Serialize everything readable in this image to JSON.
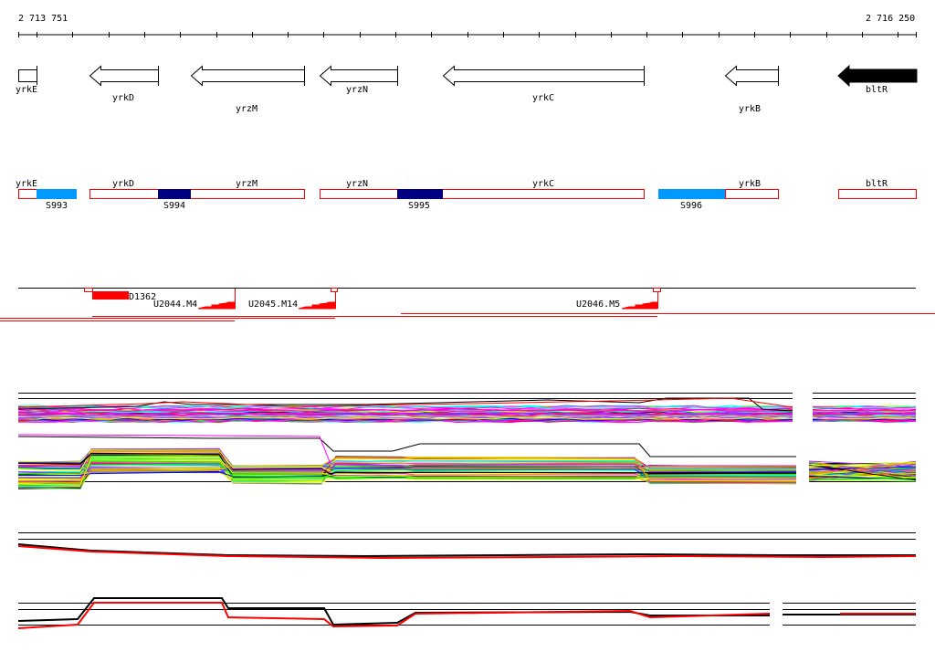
{
  "scale": {
    "start_label": "2 713 751",
    "end_label": "2 716 250"
  },
  "genes": [
    {
      "name": "yrkE",
      "strand": "box"
    },
    {
      "name": "yrkD",
      "strand": "-"
    },
    {
      "name": "yrzM",
      "strand": "-"
    },
    {
      "name": "yrzN",
      "strand": "-"
    },
    {
      "name": "yrkC",
      "strand": "-"
    },
    {
      "name": "yrkB",
      "strand": "-"
    },
    {
      "name": "bltR",
      "strand": "-",
      "highlighted": true
    }
  ],
  "segments": [
    {
      "name": "S993",
      "color": "#0099ff"
    },
    {
      "name": "S994",
      "color": "#000080"
    },
    {
      "name": "S995",
      "color": "#000080"
    },
    {
      "name": "S996",
      "color": "#0099ff"
    }
  ],
  "transcription": {
    "features": [
      "D1362",
      "U2044.M4",
      "U2045.M14",
      "U2046.M5"
    ],
    "color": "#ff0000"
  },
  "colors": {
    "palette": [
      "#ff0000",
      "#000000",
      "#ff00ff",
      "#00ffff",
      "#00ff00",
      "#ffff00",
      "#ff9900",
      "#0066ff",
      "#996666",
      "#9933ff",
      "#999999",
      "#ccff00",
      "#0000ff"
    ]
  }
}
